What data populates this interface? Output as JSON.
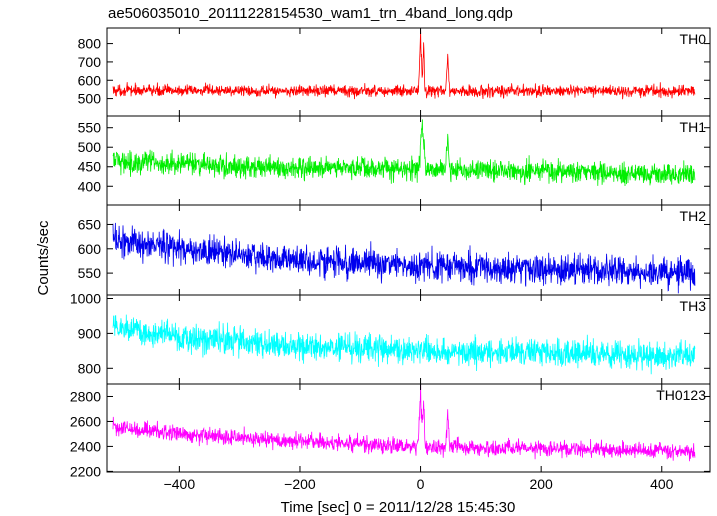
{
  "title": "ae506035010_20111228154530_wam1_trn_4band_long.qdp",
  "xlabel": "Time [sec] 0 = 2011/12/28 15:45:30",
  "ylabel": "Counts/sec",
  "chart_data": {
    "type": "line",
    "title": "ae506035010_20111228154530_wam1_trn_4band_long.qdp",
    "xlabel": "Time [sec] 0 = 2011/12/28 15:45:30",
    "ylabel": "Counts/sec",
    "xlim": [
      -520,
      480
    ],
    "x_ticks": [
      -400,
      -200,
      0,
      200,
      400
    ],
    "x_tick_labels": [
      "−400",
      "−200",
      "0",
      "200",
      "400"
    ],
    "data_x_range": [
      -510,
      455
    ],
    "grid": false,
    "legend": "none",
    "panels": [
      {
        "name": "TH0",
        "color": "#ff0000",
        "ylim": [
          405,
          885
        ],
        "y_ticks": [
          500,
          600,
          700,
          800
        ],
        "baseline": [
          [
            -510,
            545
          ],
          [
            0,
            540
          ],
          [
            455,
            540
          ]
        ],
        "noise": 22,
        "features": [
          {
            "x": 0,
            "width": 3,
            "peak": 880
          },
          {
            "x": 5,
            "width": 2,
            "peak": 850
          },
          {
            "x": 45,
            "width": 3,
            "peak": 760
          }
        ]
      },
      {
        "name": "TH1",
        "color": "#00ee00",
        "ylim": [
          352,
          580
        ],
        "y_ticks": [
          400,
          450,
          500,
          550
        ],
        "baseline": [
          [
            -510,
            465
          ],
          [
            -300,
            450
          ],
          [
            0,
            445
          ],
          [
            455,
            430
          ]
        ],
        "noise": 20,
        "features": [
          {
            "x": 3,
            "width": 5,
            "peak": 580
          },
          {
            "x": 45,
            "width": 3,
            "peak": 545
          }
        ]
      },
      {
        "name": "TH2",
        "color": "#0000ee",
        "ylim": [
          505,
          690
        ],
        "y_ticks": [
          550,
          600,
          650
        ],
        "baseline": [
          [
            -510,
            620
          ],
          [
            -400,
            600
          ],
          [
            -200,
            575
          ],
          [
            0,
            565
          ],
          [
            455,
            550
          ]
        ],
        "noise": 22,
        "features": []
      },
      {
        "name": "TH3",
        "color": "#00ffff",
        "ylim": [
          755,
          1010
        ],
        "y_ticks": [
          800,
          900,
          1000
        ],
        "baseline": [
          [
            -510,
            920
          ],
          [
            -400,
            890
          ],
          [
            -200,
            860
          ],
          [
            0,
            850
          ],
          [
            455,
            835
          ]
        ],
        "noise": 28,
        "features": []
      },
      {
        "name": "TH0123",
        "color": "#ff00ff",
        "ylim": [
          2195,
          2900
        ],
        "y_ticks": [
          2200,
          2400,
          2600,
          2800
        ],
        "baseline": [
          [
            -510,
            2560
          ],
          [
            -400,
            2500
          ],
          [
            -200,
            2440
          ],
          [
            0,
            2400
          ],
          [
            455,
            2360
          ]
        ],
        "noise": 45,
        "features": [
          {
            "x": 0,
            "width": 4,
            "peak": 2900
          },
          {
            "x": 5,
            "width": 2,
            "peak": 2850
          },
          {
            "x": 45,
            "width": 3,
            "peak": 2700
          }
        ]
      }
    ]
  }
}
